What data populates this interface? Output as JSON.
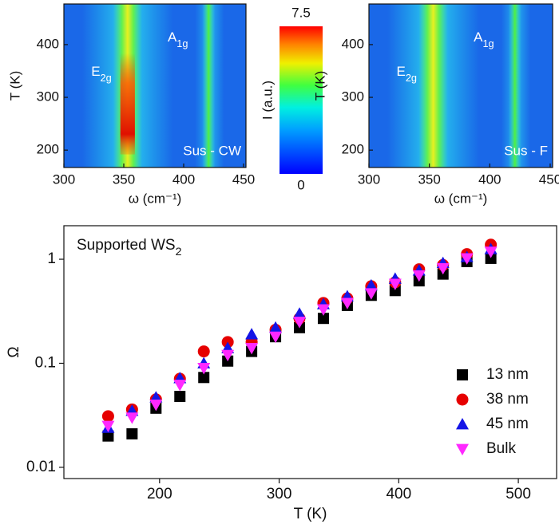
{
  "chart_data": [
    {
      "type": "heatmap",
      "xlabel": "ω (cm⁻¹)",
      "ylabel": "T (K)",
      "xlim": [
        300,
        452
      ],
      "ylim": [
        167,
        477
      ],
      "xticks": [
        300,
        350,
        400,
        450
      ],
      "yticks": [
        200,
        300,
        400
      ],
      "annotations": [
        {
          "base": "E",
          "sub": "2g"
        },
        {
          "base": "A",
          "sub": "1g"
        }
      ],
      "label": "Sus - CW",
      "colorbar": {
        "lim": [
          0,
          7.5
        ],
        "ticks": [
          0,
          7.5
        ],
        "label": "I (a.u.)"
      }
    },
    {
      "type": "heatmap",
      "xlabel": "ω (cm⁻¹)",
      "ylabel": "T (K)",
      "xlim": [
        300,
        452
      ],
      "ylim": [
        167,
        477
      ],
      "xticks": [
        300,
        350,
        400,
        450
      ],
      "yticks": [
        200,
        300,
        400
      ],
      "annotations": [
        {
          "base": "E",
          "sub": "2g"
        },
        {
          "base": "A",
          "sub": "1g"
        }
      ],
      "label": "Sus - F"
    },
    {
      "type": "scatter",
      "title": {
        "base": "Supported WS",
        "sub": "2"
      },
      "xlabel": "T (K)",
      "ylabel": "Ω",
      "log_y": true,
      "legend": "lower right",
      "xlim": [
        120,
        532
      ],
      "ylim": [
        0.0078,
        2.1
      ],
      "xticks": [
        200,
        300,
        400,
        500
      ],
      "yticks": [
        0.01,
        0.1,
        1
      ],
      "x": [
        157,
        177,
        197,
        217,
        237,
        257,
        277,
        297,
        317,
        337,
        357,
        377,
        397,
        417,
        437,
        457,
        477
      ],
      "series": [
        {
          "name": "13 nm",
          "color": "#000000",
          "marker": "square",
          "values": [
            0.02,
            0.021,
            0.037,
            0.048,
            0.073,
            0.105,
            0.13,
            0.18,
            0.22,
            0.27,
            0.36,
            0.45,
            0.5,
            0.62,
            0.72,
            0.95,
            1.02
          ]
        },
        {
          "name": "38 nm",
          "color": "#e60000",
          "marker": "circle",
          "values": [
            0.031,
            0.036,
            0.045,
            0.071,
            0.13,
            0.16,
            0.16,
            0.21,
            0.27,
            0.38,
            0.42,
            0.55,
            0.6,
            0.8,
            0.88,
            1.12,
            1.38
          ]
        },
        {
          "name": "45 nm",
          "color": "#1414e6",
          "marker": "triangle-up",
          "values": [
            0.024,
            0.035,
            0.047,
            0.072,
            0.1,
            0.14,
            0.19,
            0.22,
            0.3,
            0.37,
            0.44,
            0.56,
            0.65,
            0.78,
            0.92,
            1.05,
            1.25
          ]
        },
        {
          "name": "Bulk",
          "color": "#ff28ff",
          "marker": "triangle-down",
          "values": [
            0.025,
            0.03,
            0.04,
            0.062,
            0.09,
            0.12,
            0.14,
            0.18,
            0.25,
            0.33,
            0.38,
            0.47,
            0.58,
            0.7,
            0.82,
            1.02,
            1.18
          ]
        }
      ]
    }
  ]
}
